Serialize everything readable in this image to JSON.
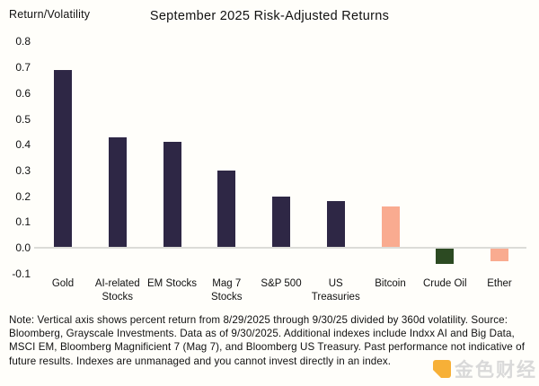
{
  "header": {
    "ylabel": "Return/Volatility",
    "title": "September 2025 Risk-Adjusted Returns"
  },
  "chart_data": {
    "type": "bar",
    "title": "September 2025 Risk-Adjusted Returns",
    "ylabel": "Return/Volatility",
    "xlabel": "",
    "categories": [
      "Gold",
      "AI-related Stocks",
      "EM Stocks",
      "Mag 7 Stocks",
      "S&P 500",
      "US Treasuries",
      "Bitcoin",
      "Crude Oil",
      "Ether"
    ],
    "category_lines": [
      [
        "Gold"
      ],
      [
        "AI-related",
        "Stocks"
      ],
      [
        "EM Stocks"
      ],
      [
        "Mag 7",
        "Stocks"
      ],
      [
        "S&P 500"
      ],
      [
        "US",
        "Treasuries"
      ],
      [
        "Bitcoin"
      ],
      [
        "Crude Oil"
      ],
      [
        "Ether"
      ]
    ],
    "values": [
      0.69,
      0.43,
      0.41,
      0.3,
      0.2,
      0.18,
      0.16,
      -0.06,
      -0.05
    ],
    "bar_colors": [
      "#2e2745",
      "#2e2745",
      "#2e2745",
      "#2e2745",
      "#2e2745",
      "#2e2745",
      "#f9ab90",
      "#2c4a22",
      "#f9ab90"
    ],
    "ylim": [
      -0.1,
      0.8
    ],
    "yticks": [
      0.8,
      0.7,
      0.6,
      0.5,
      0.4,
      0.3,
      0.2,
      0.1,
      0.0,
      -0.1
    ],
    "ytick_labels": [
      "0.8",
      "0.7",
      "0.6",
      "0.5",
      "0.4",
      "0.3",
      "0.2",
      "0.1",
      "0.0",
      "-0.1"
    ],
    "grid": false,
    "legend": "none",
    "zero_line_color": "#dcdcd8"
  },
  "colors": {
    "navy": "#2e2745",
    "salmon": "#f9ab90",
    "green": "#2c4a22",
    "axis_line": "#dcdcd8",
    "background": "#fffefa",
    "text": "#111111"
  },
  "note": {
    "text": "Note: Vertical axis shows percent return from 8/29/2025 through 9/30/25 divided by 360d volatility. Source: Bloomberg, Grayscale Investments. Data as of 9/30/2025. Additional indexes include Indxx AI and Big Data, MSCI EM, Bloomberg Magnificient 7 (Mag 7), and Bloomberg US Treasury. Past performance not indicative of future results. Indexes are unmanaged and you cannot invest directly in an index."
  },
  "watermark": {
    "text": "金色财经"
  }
}
